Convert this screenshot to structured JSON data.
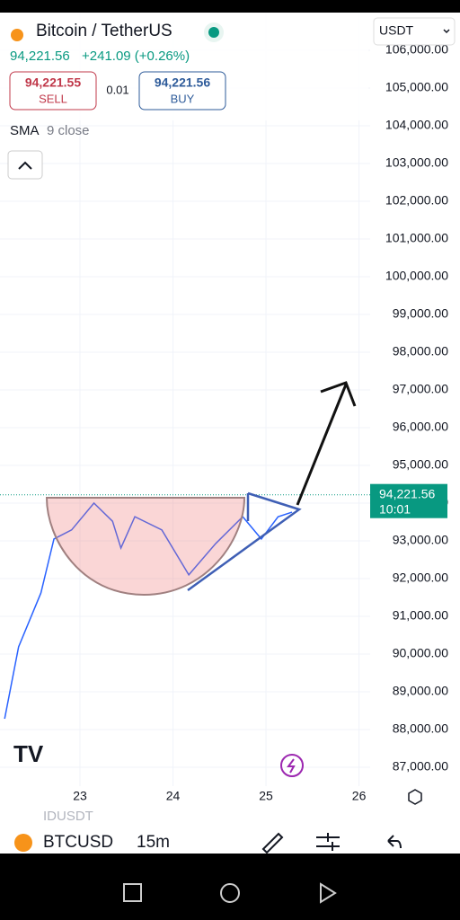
{
  "header": {
    "title": "Bitcoin / TetherUS",
    "price": "94,221.56",
    "change": "+241.09 (+0.26%)",
    "currency": "USDT"
  },
  "order": {
    "sell_price": "94,221.55",
    "sell": "SELL",
    "spread": "0.01",
    "buy_price": "94,221.56",
    "buy": "BUY"
  },
  "indicator": {
    "name": "SMA",
    "params": "9 close"
  },
  "chart_data": {
    "type": "line",
    "x": [
      22.19,
      22.34,
      22.58,
      22.72,
      22.91,
      23.15,
      23.35,
      23.44,
      23.59,
      23.88,
      24.17,
      24.46,
      24.75,
      24.95,
      25.13,
      25.28
    ],
    "values": [
      88286,
      90190,
      91620,
      93050,
      93290,
      94000,
      93520,
      92810,
      93640,
      93290,
      92100,
      92930,
      93640,
      93050,
      93640,
      93760
    ],
    "color": "#2962ff",
    "xlim": [
      22.14,
      26.12
    ],
    "xticks": [
      23,
      24,
      25,
      26
    ],
    "ylim": [
      86500,
      106000
    ],
    "yticks": [
      {
        "value": 87000,
        "label": "87,000.00"
      },
      {
        "value": 88000,
        "label": "88,000.00"
      },
      {
        "value": 89000,
        "label": "89,000.00"
      },
      {
        "value": 90000,
        "label": "90,000.00"
      },
      {
        "value": 91000,
        "label": "91,000.00"
      },
      {
        "value": 92000,
        "label": "92,000.00"
      },
      {
        "value": 93000,
        "label": "93,000.00"
      },
      {
        "value": 94000,
        "label": "94,000.00"
      },
      {
        "value": 95000,
        "label": "95,000.00"
      },
      {
        "value": 96000,
        "label": "96,000.00"
      },
      {
        "value": 97000,
        "label": "97,000.00"
      },
      {
        "value": 98000,
        "label": "98,000.00"
      },
      {
        "value": 99000,
        "label": "99,000.00"
      },
      {
        "value": 100000,
        "label": "100,000.00"
      },
      {
        "value": 101000,
        "label": "101,000.00"
      },
      {
        "value": 102000,
        "label": "102,000.00"
      },
      {
        "value": 103000,
        "label": "103,000.00"
      },
      {
        "value": 104000,
        "label": "104,000.00"
      },
      {
        "value": 105000,
        "label": "105,000.00"
      },
      {
        "value": 106000,
        "label": "106,000.00"
      }
    ],
    "grid": true,
    "last_price": {
      "value": 94221.56,
      "label": "94,221.56"
    },
    "last_time": "10:01"
  },
  "footer": {
    "symbol_partial": "IDUSDT",
    "symbol": "BTCUSD",
    "interval": "15m"
  }
}
